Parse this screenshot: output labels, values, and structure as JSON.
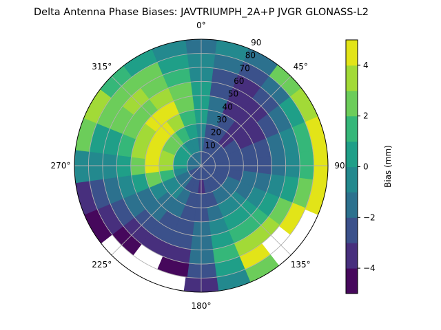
{
  "chart_data": {
    "type": "heatmap",
    "subtype": "polar-filled-contour",
    "title": "Delta Antenna Phase Biases: JAVTRIUMPH_2A+P JVGR GLONASS-L2",
    "colorbar_label": "Bias (mm)",
    "levels": [
      -5,
      -4,
      -3,
      -2,
      -1,
      0,
      1,
      2,
      3,
      4,
      5
    ],
    "level_colors": [
      "#46085c",
      "#472f7d",
      "#3b518b",
      "#2c718e",
      "#23898e",
      "#1f9f88",
      "#35b779",
      "#6ccd5a",
      "#a2da37",
      "#e2e418"
    ],
    "colorbar_ticks": [
      "4",
      "2",
      "0",
      "−2",
      "−4"
    ],
    "colorbar_tick_values": [
      4,
      2,
      0,
      -2,
      -4
    ],
    "angular_ticks": [
      "0°",
      "45°",
      "90°",
      "135°",
      "180°",
      "225°",
      "270°",
      "315°"
    ],
    "angular_tick_values": [
      0,
      45,
      90,
      135,
      180,
      225,
      270,
      315
    ],
    "radial_ticks": [
      "10",
      "20",
      "30",
      "40",
      "50",
      "60",
      "70",
      "80",
      "90"
    ],
    "radial_tick_values": [
      10,
      20,
      30,
      40,
      50,
      60,
      70,
      80,
      90
    ],
    "rlim": [
      0,
      90
    ],
    "theta_zero": "N",
    "theta_direction": "clockwise",
    "grid": true,
    "azimuth_deg": [
      0,
      15,
      30,
      45,
      60,
      75,
      90,
      105,
      120,
      135,
      150,
      165,
      180,
      195,
      210,
      225,
      240,
      255,
      270,
      285,
      300,
      315,
      330,
      345
    ],
    "zenith_deg": [
      5,
      15,
      25,
      35,
      45,
      55,
      65,
      75,
      85
    ],
    "bias_mm": [
      [
        -2.5,
        -1.5,
        -0.5,
        0.5,
        0.5,
        0.5,
        -0.5,
        -0.5,
        -1.5
      ],
      [
        -2.5,
        -2.5,
        -2.5,
        -1.5,
        -1.5,
        -2.5,
        -2.5,
        -1.5,
        -0.5
      ],
      [
        -2.5,
        -2.5,
        -2.5,
        -2.5,
        -3.5,
        -3.5,
        -3.5,
        -2.5,
        -1.5
      ],
      [
        -2.5,
        -2.5,
        -3.5,
        -3.5,
        -3.5,
        -3.5,
        -2.5,
        -1.5,
        2.5
      ],
      [
        -2.5,
        -2.5,
        -2.5,
        -3.5,
        -3.5,
        -2.5,
        -1.5,
        0.5,
        3.5
      ],
      [
        -2.5,
        -2.5,
        -2.5,
        -2.5,
        -2.5,
        -1.5,
        -0.5,
        1.5,
        4.5
      ],
      [
        -2.5,
        -2.5,
        -2.5,
        -2.5,
        -2.5,
        -1.5,
        -0.5,
        1.5,
        4.5
      ],
      [
        -2.5,
        -2.5,
        -2.5,
        -1.5,
        -1.5,
        -0.5,
        0.5,
        2.5,
        4.5
      ],
      [
        -2.5,
        -2.5,
        -1.5,
        -1.5,
        -0.5,
        0.5,
        2.5,
        4.5,
        null
      ],
      [
        -2.5,
        -2.5,
        -1.5,
        -0.5,
        0.5,
        1.5,
        3.5,
        null,
        null
      ],
      [
        -2.5,
        -2.5,
        -1.5,
        -0.5,
        0.5,
        1.5,
        3.5,
        4.5,
        2.5
      ],
      [
        -2.5,
        -2.5,
        -2.5,
        -1.5,
        -0.5,
        0.5,
        1.5,
        0.5,
        -0.5
      ],
      [
        -2.5,
        -3.5,
        -2.5,
        -2.5,
        -1.5,
        -1.5,
        -1.5,
        -2.5,
        -3.5
      ],
      [
        -2.5,
        -2.5,
        -2.5,
        -2.5,
        -2.5,
        -2.5,
        -3.5,
        -4.5,
        null
      ],
      [
        -2.5,
        -2.5,
        -1.5,
        -1.5,
        -2.5,
        -2.5,
        -3.5,
        null,
        null
      ],
      [
        -2.5,
        -1.5,
        -0.5,
        -1.5,
        -1.5,
        -2.5,
        -3.5,
        -4.5,
        null
      ],
      [
        -2.5,
        -1.5,
        -0.5,
        -0.5,
        -1.5,
        -1.5,
        -2.5,
        -3.5,
        -4.5
      ],
      [
        -1.5,
        -0.5,
        1.5,
        2.5,
        0.5,
        -0.5,
        -1.5,
        -2.5,
        -3.5
      ],
      [
        -1.5,
        0.5,
        3.5,
        4.5,
        2.5,
        0.5,
        -0.5,
        -0.5,
        -0.5
      ],
      [
        -1.5,
        0.5,
        3.5,
        4.5,
        3.5,
        1.5,
        0.5,
        0.5,
        2.5
      ],
      [
        -1.5,
        0.5,
        2.5,
        4.5,
        3.5,
        2.5,
        2.5,
        2.5,
        3.5
      ],
      [
        -1.5,
        0.5,
        2.5,
        4.5,
        4.5,
        2.5,
        3.5,
        2.5,
        1.5
      ],
      [
        -1.5,
        -0.5,
        1.5,
        3.5,
        4.5,
        3.5,
        2.5,
        2.5,
        0.5
      ],
      [
        -1.5,
        -0.5,
        0.5,
        1.5,
        2.5,
        2.5,
        1.5,
        0.5,
        -0.5
      ]
    ]
  }
}
